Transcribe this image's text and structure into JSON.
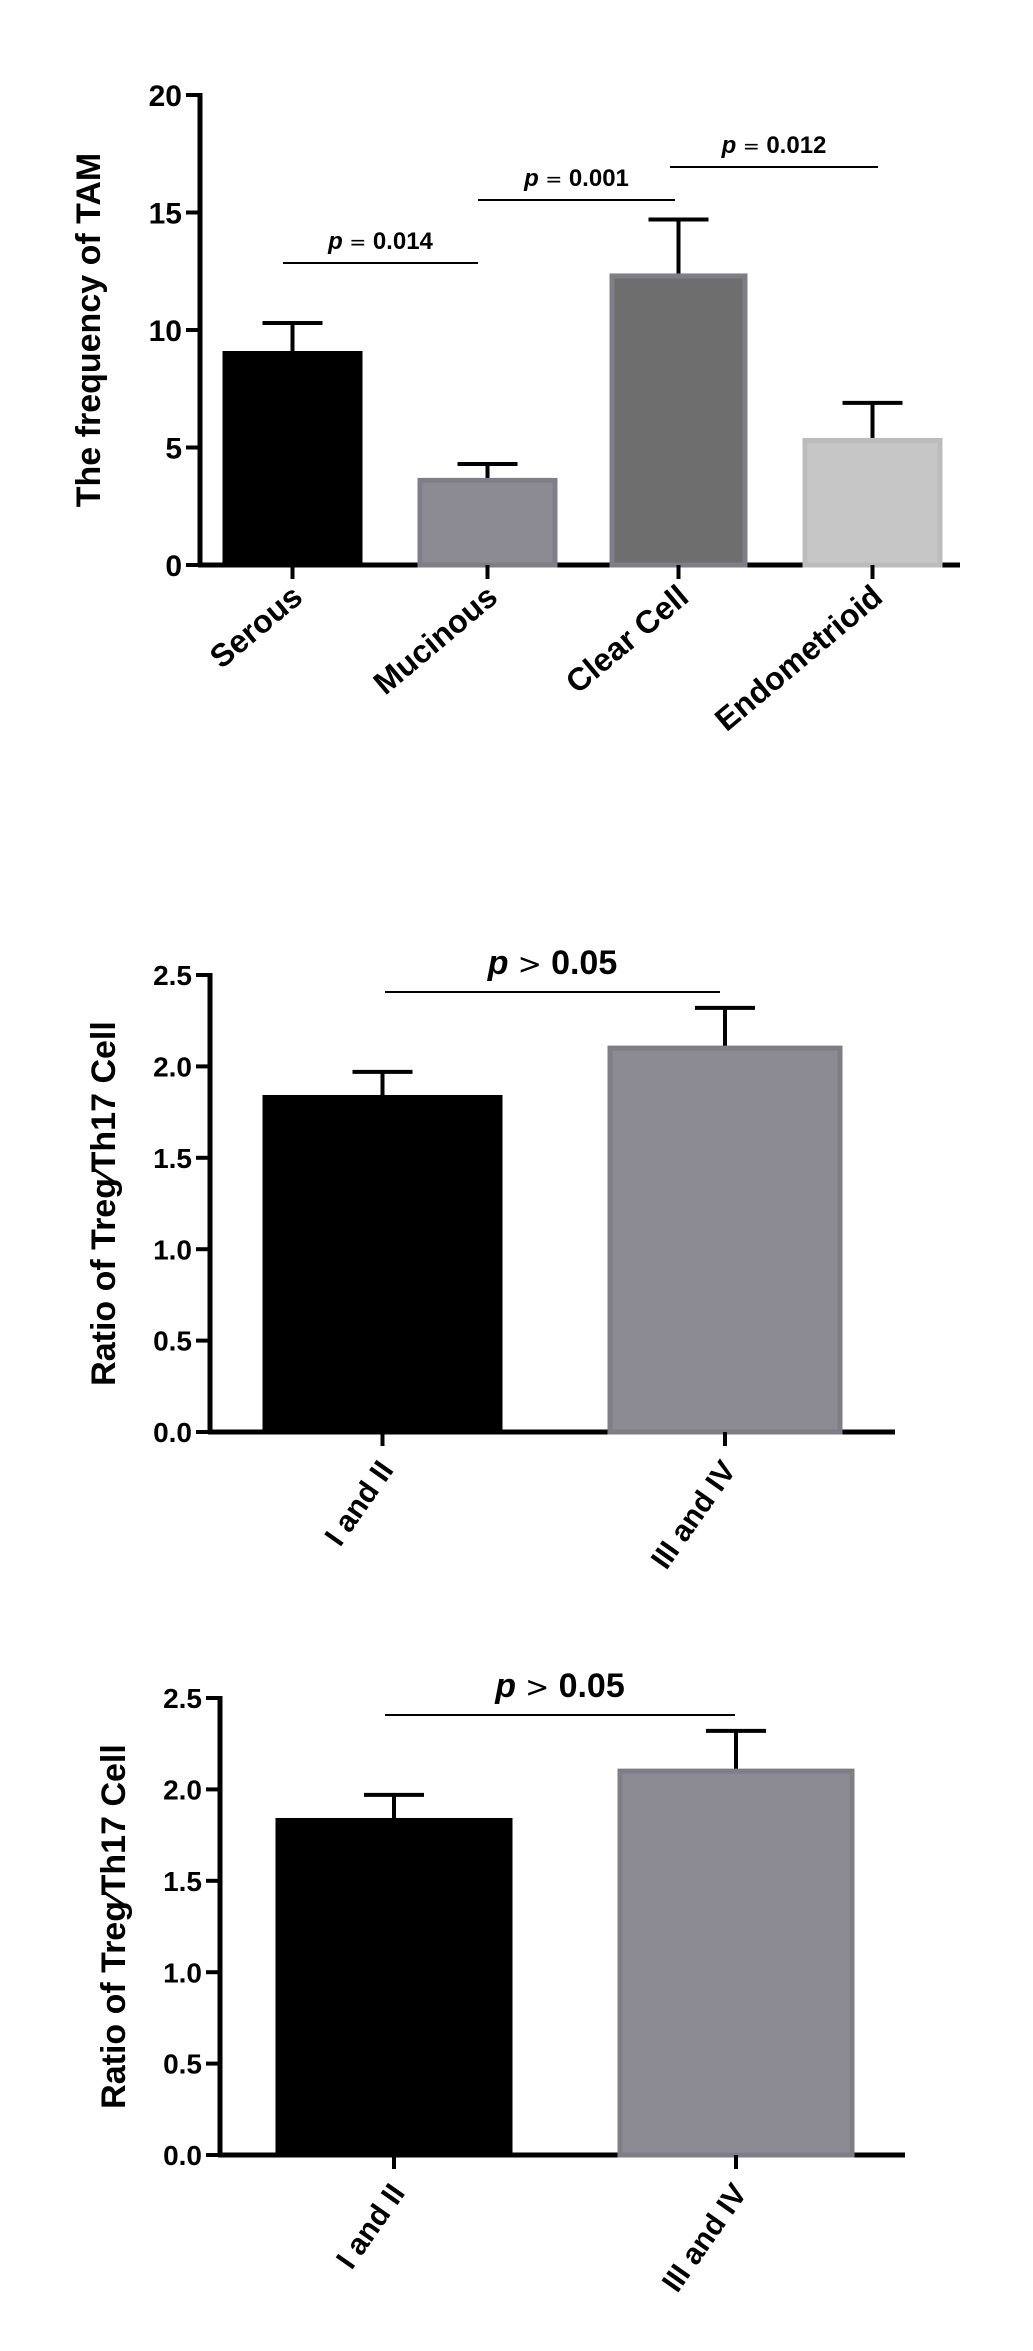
{
  "chart_data": [
    {
      "type": "bar",
      "categories": [
        "Serous",
        "Mucinous",
        "Clear Cell",
        "Endometrioid"
      ],
      "values": [
        9.0,
        3.6,
        12.3,
        5.3
      ],
      "errors": [
        1.3,
        0.7,
        2.4,
        1.6
      ],
      "ylabel": "The frequency of TAM",
      "ylim": [
        0,
        20
      ],
      "yticks": [
        "0",
        "5",
        "10",
        "15",
        "20"
      ],
      "colors": [
        "#000000",
        "#8c8b94",
        "#6e6e6e",
        "#c6c6c6"
      ],
      "annotations": [
        {
          "from": 0,
          "to": 1,
          "p_symbol": "p",
          "op": "=",
          "value": "0.014"
        },
        {
          "from": 1,
          "to": 2,
          "p_symbol": "p",
          "op": "=",
          "value": "0.001"
        },
        {
          "from": 2,
          "to": 3,
          "p_symbol": "p",
          "op": "=",
          "value": "0.012"
        }
      ]
    },
    {
      "type": "bar",
      "categories": [
        "I and II",
        "III and IV"
      ],
      "values": [
        1.83,
        2.1
      ],
      "errors": [
        0.14,
        0.22
      ],
      "ylabel": "Ratio of Treg⁄Th17 Cell",
      "ylim": [
        0,
        2.5
      ],
      "yticks": [
        "0.0",
        "0.5",
        "1.0",
        "1.5",
        "2.0",
        "2.5"
      ],
      "colors": [
        "#000000",
        "#8c8b94"
      ],
      "annotations": [
        {
          "from": 0,
          "to": 1,
          "p_symbol": "p",
          "op": ">",
          "value": "0.05"
        }
      ]
    },
    {
      "type": "bar",
      "categories": [
        "I and II",
        "III and IV"
      ],
      "values": [
        1.83,
        2.1
      ],
      "errors": [
        0.14,
        0.22
      ],
      "ylabel": "Ratio of Treg⁄Th17 Cell",
      "ylim": [
        0,
        2.5
      ],
      "yticks": [
        "0.0",
        "0.5",
        "1.0",
        "1.5",
        "2.0",
        "2.5"
      ],
      "colors": [
        "#000000",
        "#8c8b94"
      ],
      "annotations": [
        {
          "from": 0,
          "to": 1,
          "p_symbol": "p",
          "op": ">",
          "value": "0.05"
        }
      ]
    }
  ]
}
